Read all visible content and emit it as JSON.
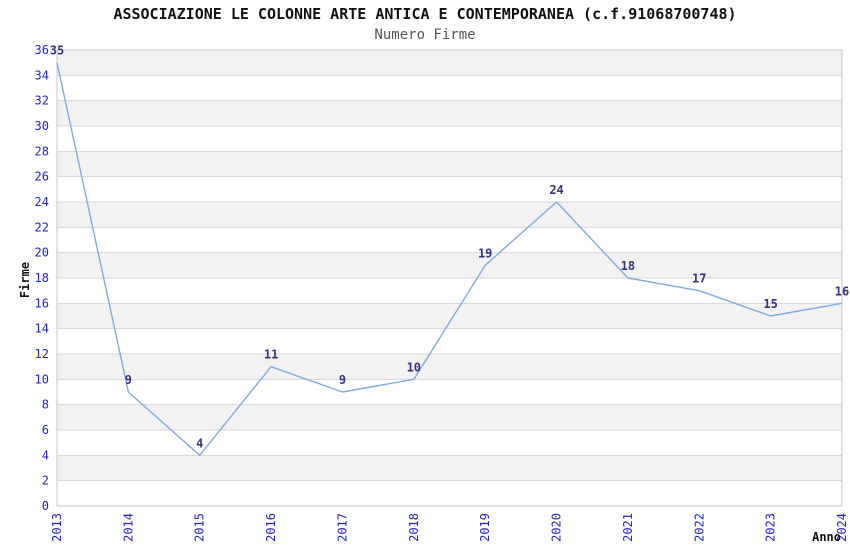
{
  "header": {
    "title": "ASSOCIAZIONE LE COLONNE ARTE ANTICA E CONTEMPORANEA (c.f.91068700748)",
    "subtitle": "Numero Firme"
  },
  "chart_data": {
    "type": "line",
    "title": "ASSOCIAZIONE LE COLONNE ARTE ANTICA E CONTEMPORANEA (c.f.91068700748)",
    "subtitle": "Numero Firme",
    "xlabel": "Anno",
    "ylabel": "Firme",
    "categories": [
      "2013",
      "2014",
      "2015",
      "2016",
      "2017",
      "2018",
      "2019",
      "2020",
      "2021",
      "2022",
      "2023",
      "2024"
    ],
    "series": [
      {
        "name": "Numero Firme",
        "values": [
          35,
          9,
          4,
          11,
          9,
          10,
          19,
          24,
          18,
          17,
          15,
          16
        ]
      }
    ],
    "point_labels": [
      35,
      9,
      4,
      11,
      9,
      10,
      19,
      24,
      18,
      17,
      15,
      16
    ],
    "ylim": [
      0,
      36
    ],
    "ytick_step": 2,
    "yticks": [
      0,
      2,
      4,
      6,
      8,
      10,
      12,
      14,
      16,
      18,
      20,
      22,
      24,
      26,
      28,
      30,
      32,
      34,
      36
    ],
    "grid": true,
    "alternating_bands": true,
    "legend": false
  },
  "style": {
    "line_color": "#7fabe0",
    "tick_label_color": "#2222cc",
    "point_label_color": "#333380",
    "axis_title_color": "#111111",
    "title_color": "#111111",
    "subtitle_color": "#555555",
    "band_color": "#f2f2f2",
    "grid_color": "#d6d6d6",
    "border_color": "#c9c9c9",
    "background": "#ffffff"
  }
}
